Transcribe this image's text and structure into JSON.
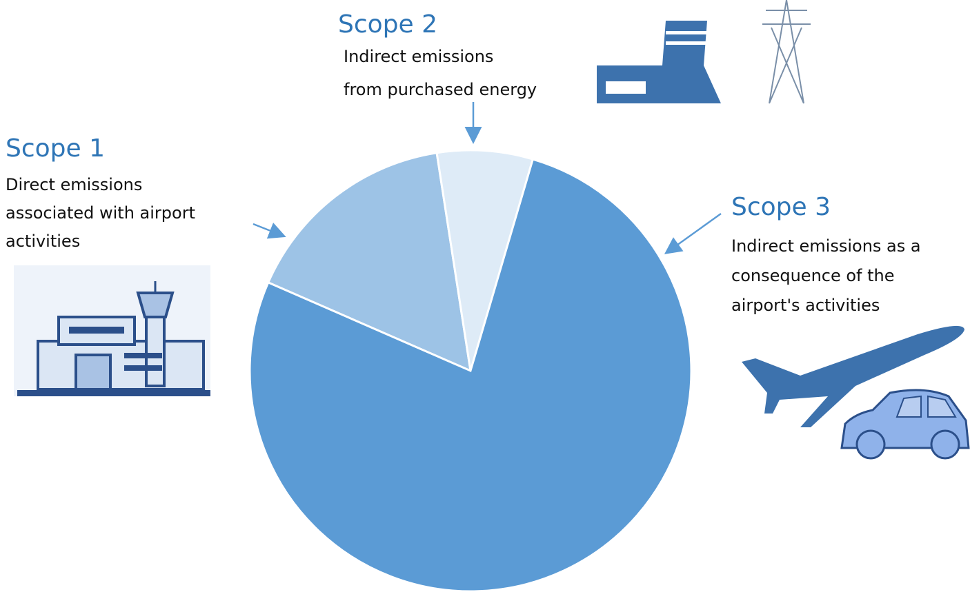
{
  "chart_data": {
    "type": "pie",
    "categories": [
      "Scope 1",
      "Scope 2",
      "Scope 3"
    ],
    "descriptions": [
      [
        "Direct emissions",
        "associated with airport",
        "activities"
      ],
      [
        "Indirect emissions",
        "from purchased energy"
      ],
      [
        "Indirect emissions as a",
        "consequence of the",
        "airport's activities"
      ]
    ],
    "values": [
      16,
      7,
      77
    ],
    "colors": [
      "#9dc3e6",
      "#deebf7",
      "#5b9bd5"
    ]
  }
}
